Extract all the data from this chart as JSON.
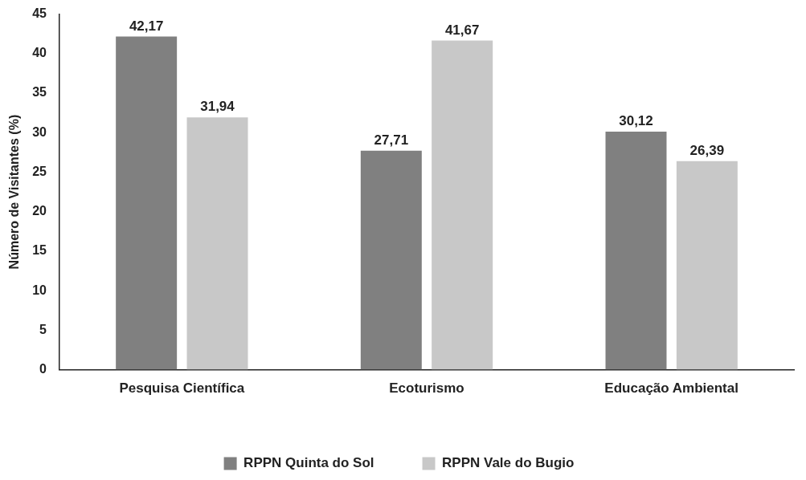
{
  "chart_data": {
    "type": "bar",
    "ylabel": "Número de Visitantes (%)",
    "categories": [
      "Pesquisa Científica",
      "Ecoturismo",
      "Educação Ambiental"
    ],
    "series": [
      {
        "name": "RPPN Quinta do Sol",
        "color": "#808080",
        "values": [
          42.17,
          27.71,
          30.12
        ],
        "value_labels": [
          "42,17",
          "27,71",
          "30,12"
        ]
      },
      {
        "name": "RPPN Vale do Bugio",
        "color": "#c8c8c8",
        "values": [
          31.94,
          41.67,
          26.39
        ],
        "value_labels": [
          "31,94",
          "41,67",
          "26,39"
        ]
      }
    ],
    "ylim": [
      0,
      45
    ],
    "yticks": [
      0,
      5,
      10,
      15,
      20,
      25,
      30,
      35,
      40,
      45
    ],
    "grid": false,
    "legend": "bottom"
  }
}
